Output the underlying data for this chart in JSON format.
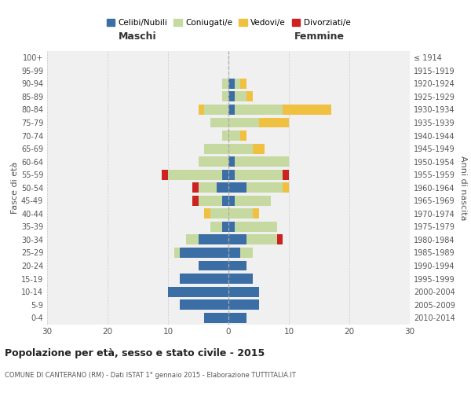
{
  "age_groups": [
    "0-4",
    "5-9",
    "10-14",
    "15-19",
    "20-24",
    "25-29",
    "30-34",
    "35-39",
    "40-44",
    "45-49",
    "50-54",
    "55-59",
    "60-64",
    "65-69",
    "70-74",
    "75-79",
    "80-84",
    "85-89",
    "90-94",
    "95-99",
    "100+"
  ],
  "birth_years": [
    "2010-2014",
    "2005-2009",
    "2000-2004",
    "1995-1999",
    "1990-1994",
    "1985-1989",
    "1980-1984",
    "1975-1979",
    "1970-1974",
    "1965-1969",
    "1960-1964",
    "1955-1959",
    "1950-1954",
    "1945-1949",
    "1940-1944",
    "1935-1939",
    "1930-1934",
    "1925-1929",
    "1920-1924",
    "1915-1919",
    "≤ 1914"
  ],
  "maschi_celibe": [
    4,
    8,
    10,
    8,
    5,
    8,
    5,
    1,
    0,
    1,
    2,
    1,
    0,
    0,
    0,
    0,
    0,
    0,
    0,
    0,
    0
  ],
  "maschi_coniugato": [
    0,
    0,
    0,
    0,
    0,
    1,
    2,
    2,
    3,
    4,
    3,
    9,
    5,
    4,
    1,
    3,
    4,
    1,
    1,
    0,
    0
  ],
  "maschi_vedovo": [
    0,
    0,
    0,
    0,
    0,
    0,
    0,
    0,
    1,
    0,
    0,
    0,
    0,
    0,
    0,
    0,
    1,
    0,
    0,
    0,
    0
  ],
  "maschi_divorziato": [
    0,
    0,
    0,
    0,
    0,
    0,
    0,
    0,
    0,
    1,
    1,
    1,
    0,
    0,
    0,
    0,
    0,
    0,
    0,
    0,
    0
  ],
  "femmine_celibe": [
    3,
    5,
    5,
    4,
    3,
    2,
    3,
    1,
    0,
    1,
    3,
    1,
    1,
    0,
    0,
    0,
    1,
    1,
    1,
    0,
    0
  ],
  "femmine_coniugato": [
    0,
    0,
    0,
    0,
    0,
    2,
    5,
    7,
    4,
    6,
    6,
    8,
    9,
    4,
    2,
    5,
    8,
    2,
    1,
    0,
    0
  ],
  "femmine_vedovo": [
    0,
    0,
    0,
    0,
    0,
    0,
    0,
    0,
    1,
    0,
    1,
    0,
    0,
    2,
    1,
    5,
    8,
    1,
    1,
    0,
    0
  ],
  "femmine_divorziato": [
    0,
    0,
    0,
    0,
    0,
    0,
    1,
    0,
    0,
    0,
    0,
    1,
    0,
    0,
    0,
    0,
    0,
    0,
    0,
    0,
    0
  ],
  "colors": {
    "celibe": "#3a6ea5",
    "coniugato": "#c5d9a0",
    "vedovo": "#f0c040",
    "divorziato": "#cc2222"
  },
  "title": "Popolazione per età, sesso e stato civile - 2015",
  "subtitle": "COMUNE DI CANTERANO (RM) - Dati ISTAT 1° gennaio 2015 - Elaborazione TUTTITALIA.IT",
  "ylabel_left": "Fasce di età",
  "ylabel_right": "Anni di nascita",
  "xlabel_left": "Maschi",
  "xlabel_right": "Femmine",
  "xlim": 30,
  "bg_color": "#ffffff",
  "plot_bg_color": "#f0f0f0",
  "grid_color": "#cccccc",
  "legend_labels": [
    "Celibi/Nubili",
    "Coniugati/e",
    "Vedovi/e",
    "Divorziati/e"
  ]
}
